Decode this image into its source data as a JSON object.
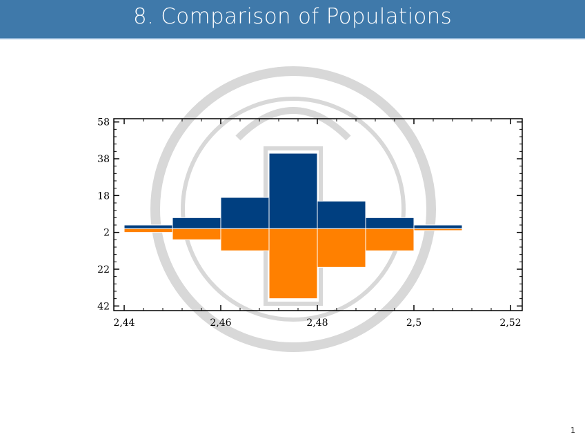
{
  "slide": {
    "title": "8. Comparison of Populations",
    "page_number": "1"
  },
  "chart_data": {
    "type": "bar",
    "subtype": "back-to-back histogram",
    "title": "",
    "xlabel": "",
    "ylabel": "",
    "bin_edges": [
      2.44,
      2.45,
      2.46,
      2.47,
      2.48,
      2.49,
      2.5,
      2.51
    ],
    "series": [
      {
        "direction": "up",
        "color": "#003f80",
        "values": [
          2,
          6,
          17,
          41,
          15,
          6,
          2
        ]
      },
      {
        "direction": "down",
        "color": "#ff8000",
        "values": [
          2,
          6,
          12,
          38,
          21,
          12,
          1
        ]
      }
    ],
    "xlim": [
      2.44,
      2.52
    ],
    "ylim": [
      -42,
      58
    ],
    "x_ticks": [
      {
        "value": 2.44,
        "label": "2,44"
      },
      {
        "value": 2.46,
        "label": "2,46"
      },
      {
        "value": 2.48,
        "label": "2,48"
      },
      {
        "value": 2.5,
        "label": "2,5"
      },
      {
        "value": 2.52,
        "label": "2,52"
      }
    ],
    "y_ticks": [
      {
        "value": 58,
        "label": "58"
      },
      {
        "value": 38,
        "label": "38"
      },
      {
        "value": 18,
        "label": "18"
      },
      {
        "value": -2,
        "label": "2"
      },
      {
        "value": -22,
        "label": "22"
      },
      {
        "value": -42,
        "label": "42"
      }
    ],
    "grid": false,
    "legend": "none"
  }
}
